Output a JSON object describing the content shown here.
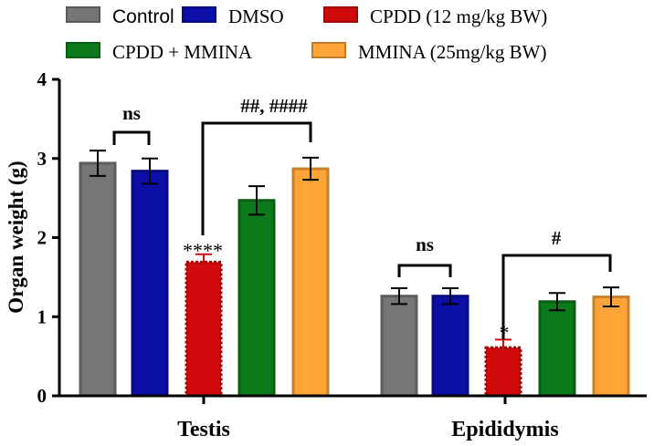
{
  "chart_data": {
    "type": "bar",
    "title": "",
    "xlabel": "",
    "ylabel": "Organ weight (g)",
    "ylim": [
      0,
      4
    ],
    "yticks": [
      "0",
      "1",
      "2",
      "3",
      "4"
    ],
    "categories": [
      "Testis",
      "Epididymis"
    ],
    "series": [
      {
        "name": "Control",
        "color": "#767676",
        "values": [
          2.94,
          1.26
        ],
        "errors": [
          0.16,
          0.1
        ]
      },
      {
        "name": "DMSO",
        "color": "#0b0fa6",
        "values": [
          2.84,
          1.26
        ],
        "errors": [
          0.16,
          0.1
        ]
      },
      {
        "name": "CPDD (12 mg/kg BW)",
        "color": "#d00a0a",
        "values": [
          1.69,
          0.61
        ],
        "errors": [
          0.1,
          0.1
        ]
      },
      {
        "name": "CPDD + MMINA",
        "color": "#0a7a1a",
        "values": [
          2.47,
          1.19
        ],
        "errors": [
          0.18,
          0.11
        ]
      },
      {
        "name": "MMINA (25mg/kg BW)",
        "color": "#ffa437",
        "values": [
          2.87,
          1.25
        ],
        "errors": [
          0.14,
          0.12
        ]
      }
    ],
    "legend": {
      "position": "top",
      "columns": 3
    },
    "annotations": {
      "testis_ns": "ns",
      "testis_hash": "##, ####",
      "testis_stars": "****",
      "epi_ns": "ns",
      "epi_hash": "#",
      "epi_star": "*"
    }
  }
}
